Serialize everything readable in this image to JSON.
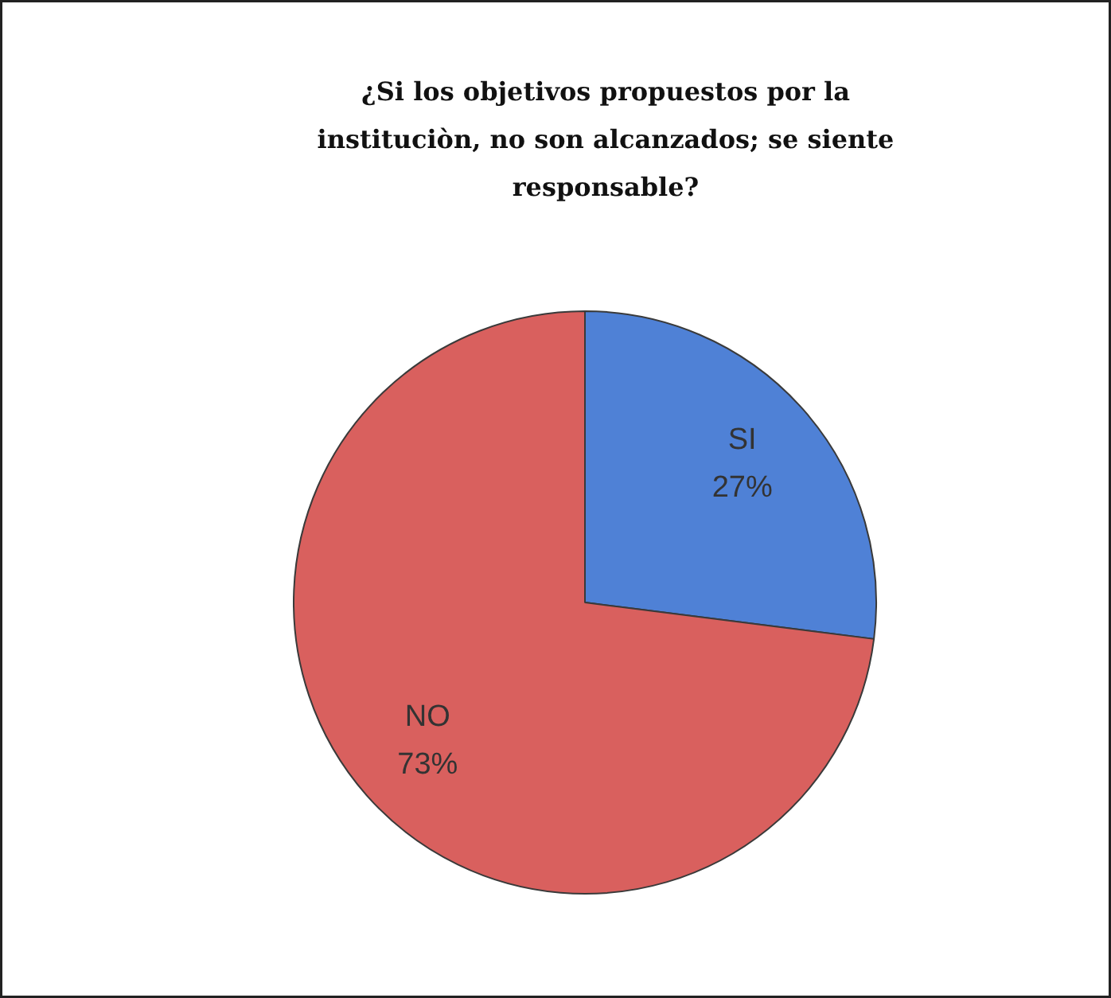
{
  "chart_data": {
    "type": "pie",
    "title": "¿Si los objetivos propuestos por la\ninstituciòn, no son alcanzados; se siente\nresponsable?",
    "categories": [
      "SI",
      "NO"
    ],
    "values": [
      27,
      73
    ],
    "colors": [
      "#4f81d6",
      "#d9605e"
    ],
    "value_labels": [
      "27%",
      "73%"
    ]
  }
}
